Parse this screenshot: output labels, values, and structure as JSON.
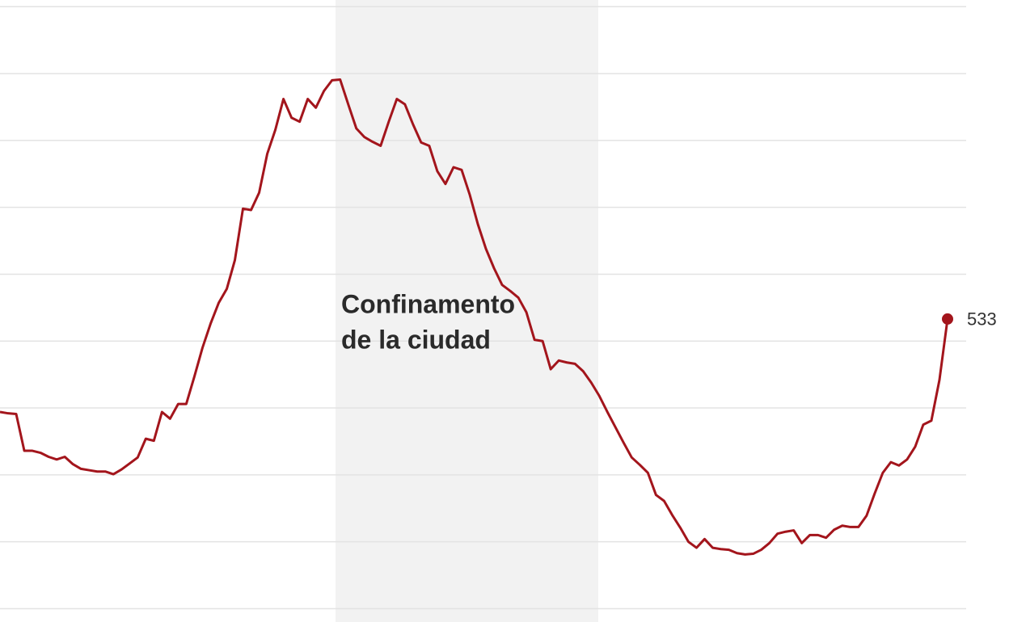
{
  "chart_data": {
    "type": "line",
    "annotation": [
      "Confinamento",
      "de la ciudad"
    ],
    "categories": [
      null,
      null,
      null,
      null,
      null,
      null,
      null,
      null,
      null,
      null,
      null,
      null,
      null,
      null,
      null,
      null,
      null,
      null,
      null,
      null,
      null,
      null,
      null,
      null,
      null,
      null,
      null,
      null,
      null,
      null,
      null,
      null,
      null,
      null,
      null,
      null,
      null,
      null,
      null,
      null,
      null,
      null,
      null,
      null,
      null,
      null,
      null,
      null,
      null,
      null,
      null,
      null,
      null,
      null,
      null,
      null,
      null,
      null,
      null,
      null,
      null,
      null,
      null,
      null,
      null,
      null,
      null,
      null,
      null,
      null,
      null,
      null,
      null,
      null,
      null,
      null,
      null,
      null,
      null,
      null,
      null,
      null,
      null,
      null,
      null,
      null,
      null,
      null,
      null,
      null,
      null,
      null,
      null,
      null,
      null,
      null,
      null,
      null,
      null,
      null,
      null,
      null,
      null,
      null,
      null,
      null,
      null,
      null,
      null,
      null,
      null,
      null,
      null,
      null,
      null,
      null,
      null,
      null
    ],
    "values": [
      394,
      392,
      391,
      336,
      336,
      333,
      327,
      323,
      327,
      316,
      309,
      307,
      305,
      305,
      301,
      308,
      317,
      326,
      354,
      351,
      394,
      384,
      406,
      406,
      447,
      490,
      526,
      557,
      578,
      621,
      698,
      696,
      722,
      780,
      816,
      862,
      834,
      828,
      862,
      849,
      874,
      890,
      891,
      854,
      818,
      805,
      798,
      792,
      828,
      862,
      854,
      824,
      797,
      792,
      754,
      735,
      760,
      756,
      719,
      675,
      638,
      609,
      584,
      575,
      565,
      543,
      502,
      500,
      458,
      471,
      468,
      466,
      455,
      438,
      418,
      394,
      371,
      348,
      326,
      315,
      303,
      270,
      261,
      240,
      221,
      200,
      191,
      204,
      191,
      189,
      188,
      183,
      181,
      182,
      188,
      198,
      212,
      215,
      217,
      198,
      210,
      210,
      206,
      218,
      224,
      222,
      222,
      239,
      272,
      303,
      319,
      314,
      323,
      342,
      375,
      381,
      442,
      533
    ],
    "color": "#a3151c",
    "ylim": [
      80,
      1010
    ],
    "yticks": [
      100,
      200,
      300,
      400,
      500,
      600,
      700,
      800,
      900,
      1000
    ],
    "grid": true
  }
}
